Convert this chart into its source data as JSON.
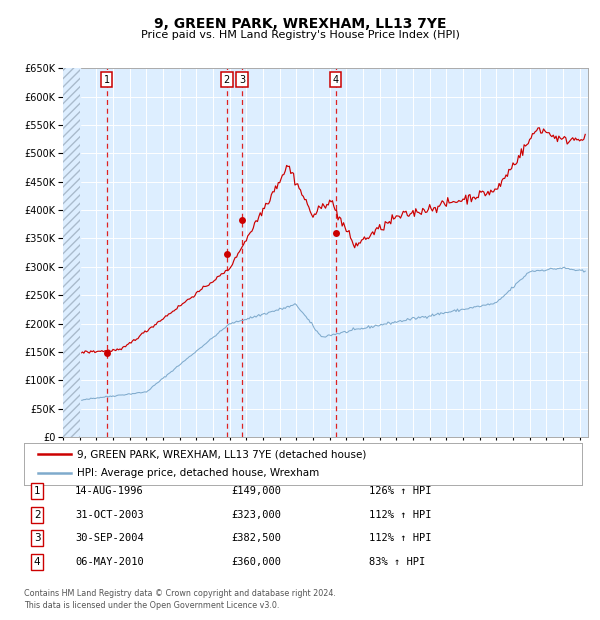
{
  "title": "9, GREEN PARK, WREXHAM, LL13 7YE",
  "subtitle": "Price paid vs. HM Land Registry's House Price Index (HPI)",
  "legend_line1": "9, GREEN PARK, WREXHAM, LL13 7YE (detached house)",
  "legend_line2": "HPI: Average price, detached house, Wrexham",
  "footer1": "Contains HM Land Registry data © Crown copyright and database right 2024.",
  "footer2": "This data is licensed under the Open Government Licence v3.0.",
  "transactions": [
    {
      "num": 1,
      "date": "14-AUG-1996",
      "price": 149000,
      "pct": "126%",
      "arrow": "↑",
      "rel": "HPI"
    },
    {
      "num": 2,
      "date": "31-OCT-2003",
      "price": 323000,
      "pct": "112%",
      "arrow": "↑",
      "rel": "HPI"
    },
    {
      "num": 3,
      "date": "30-SEP-2004",
      "price": 382500,
      "pct": "112%",
      "arrow": "↑",
      "rel": "HPI"
    },
    {
      "num": 4,
      "date": "06-MAY-2010",
      "price": 360000,
      "pct": "83%",
      "arrow": "↑",
      "rel": "HPI"
    }
  ],
  "transaction_dates_decimal": [
    1996.62,
    2003.83,
    2004.75,
    2010.35
  ],
  "transaction_prices": [
    149000,
    323000,
    382500,
    360000
  ],
  "red_line_color": "#cc0000",
  "blue_line_color": "#7faacc",
  "plot_bg_color": "#ddeeff",
  "grid_color": "#ffffff",
  "vline_color": "#dd2222",
  "box_color": "#cc0000",
  "hatch_color": "#c8d8e8",
  "ylim": [
    0,
    650000
  ],
  "yticks": [
    0,
    50000,
    100000,
    150000,
    200000,
    250000,
    300000,
    350000,
    400000,
    450000,
    500000,
    550000,
    600000,
    650000
  ],
  "xlim_start": 1994.0,
  "xlim_end": 2025.5,
  "hatch_end": 1995.0
}
